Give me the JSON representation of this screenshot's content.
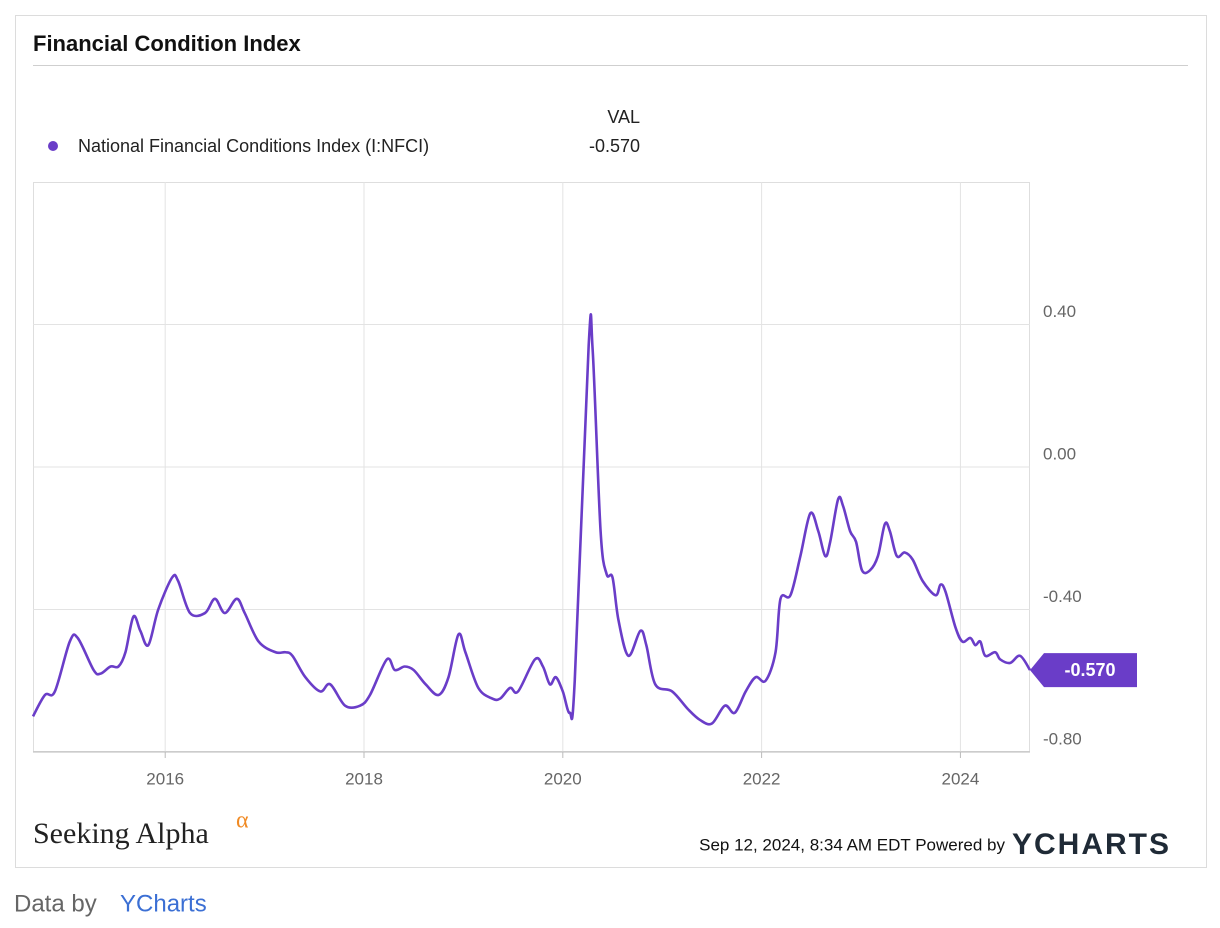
{
  "chart_data": {
    "type": "line",
    "title": "Financial Condition Index",
    "value_header": "VAL",
    "current_value": "-0.570",
    "x": [
      2014.67,
      2014.79,
      2014.89,
      2015.04,
      2015.12,
      2015.28,
      2015.35,
      2015.45,
      2015.53,
      2015.6,
      2015.68,
      2015.75,
      2015.83,
      2015.93,
      2016.07,
      2016.13,
      2016.25,
      2016.4,
      2016.5,
      2016.6,
      2016.72,
      2016.8,
      2016.94,
      2017.11,
      2017.21,
      2017.28,
      2017.41,
      2017.56,
      2017.66,
      2017.81,
      2017.96,
      2018.06,
      2018.23,
      2018.31,
      2018.41,
      2018.5,
      2018.62,
      2018.75,
      2018.85,
      2018.95,
      2019.02,
      2019.15,
      2019.29,
      2019.37,
      2019.47,
      2019.55,
      2019.72,
      2019.8,
      2019.87,
      2019.93,
      2020.0,
      2020.07,
      2020.12,
      2020.26,
      2020.3,
      2020.38,
      2020.44,
      2020.5,
      2020.56,
      2020.66,
      2020.78,
      2020.84,
      2020.93,
      2021.1,
      2021.26,
      2021.38,
      2021.5,
      2021.63,
      2021.73,
      2021.84,
      2021.94,
      2022.04,
      2022.14,
      2022.19,
      2022.29,
      2022.39,
      2022.49,
      2022.57,
      2022.64,
      2022.69,
      2022.77,
      2022.82,
      2022.89,
      2022.95,
      2023.01,
      2023.09,
      2023.17,
      2023.24,
      2023.29,
      2023.36,
      2023.44,
      2023.52,
      2023.62,
      2023.75,
      2023.8,
      2023.85,
      2023.95,
      2024.02,
      2024.1,
      2024.15,
      2024.2,
      2024.25,
      2024.35,
      2024.4,
      2024.5,
      2024.6,
      2024.7
    ],
    "series": [
      {
        "name": "National Financial Conditions Index (I:NFCI)",
        "color": "#6a3dc8",
        "values": [
          -0.7,
          -0.64,
          -0.63,
          -0.49,
          -0.48,
          -0.57,
          -0.58,
          -0.56,
          -0.56,
          -0.52,
          -0.42,
          -0.46,
          -0.5,
          -0.4,
          -0.31,
          -0.32,
          -0.41,
          -0.41,
          -0.37,
          -0.41,
          -0.37,
          -0.41,
          -0.49,
          -0.52,
          -0.52,
          -0.53,
          -0.59,
          -0.63,
          -0.61,
          -0.67,
          -0.67,
          -0.64,
          -0.54,
          -0.57,
          -0.56,
          -0.57,
          -0.61,
          -0.64,
          -0.59,
          -0.47,
          -0.52,
          -0.62,
          -0.65,
          -0.65,
          -0.62,
          -0.63,
          -0.54,
          -0.56,
          -0.61,
          -0.59,
          -0.63,
          -0.69,
          -0.6,
          0.34,
          0.33,
          -0.18,
          -0.3,
          -0.31,
          -0.43,
          -0.53,
          -0.46,
          -0.5,
          -0.61,
          -0.63,
          -0.68,
          -0.71,
          -0.72,
          -0.67,
          -0.69,
          -0.63,
          -0.59,
          -0.6,
          -0.52,
          -0.37,
          -0.36,
          -0.25,
          -0.13,
          -0.18,
          -0.25,
          -0.21,
          -0.09,
          -0.11,
          -0.18,
          -0.21,
          -0.29,
          -0.29,
          -0.25,
          -0.16,
          -0.18,
          -0.25,
          -0.24,
          -0.26,
          -0.32,
          -0.36,
          -0.33,
          -0.35,
          -0.45,
          -0.49,
          -0.48,
          -0.5,
          -0.49,
          -0.53,
          -0.52,
          -0.54,
          -0.55,
          -0.53,
          -0.57
        ]
      }
    ],
    "xlim": [
      2014.67,
      2024.7
    ],
    "xticks": [
      2016,
      2018,
      2020,
      2022,
      2024
    ],
    "ylim": [
      -0.8,
      0.8
    ],
    "yticks": [
      {
        "value": 0.4,
        "label": "0.40"
      },
      {
        "value": 0,
        "label": "0.00"
      },
      {
        "value": -0.4,
        "label": "-0.40"
      },
      {
        "value": -0.8,
        "label": "-0.80"
      }
    ],
    "grid": true
  },
  "footer": {
    "brand": "Seeking Alpha",
    "brand_mark": "α",
    "timestamp": "Sep 12, 2024, 8:34 AM EDT Powered by",
    "provider": "YCHARTS"
  },
  "credit": {
    "prefix": "Data by",
    "link": "YCharts"
  }
}
